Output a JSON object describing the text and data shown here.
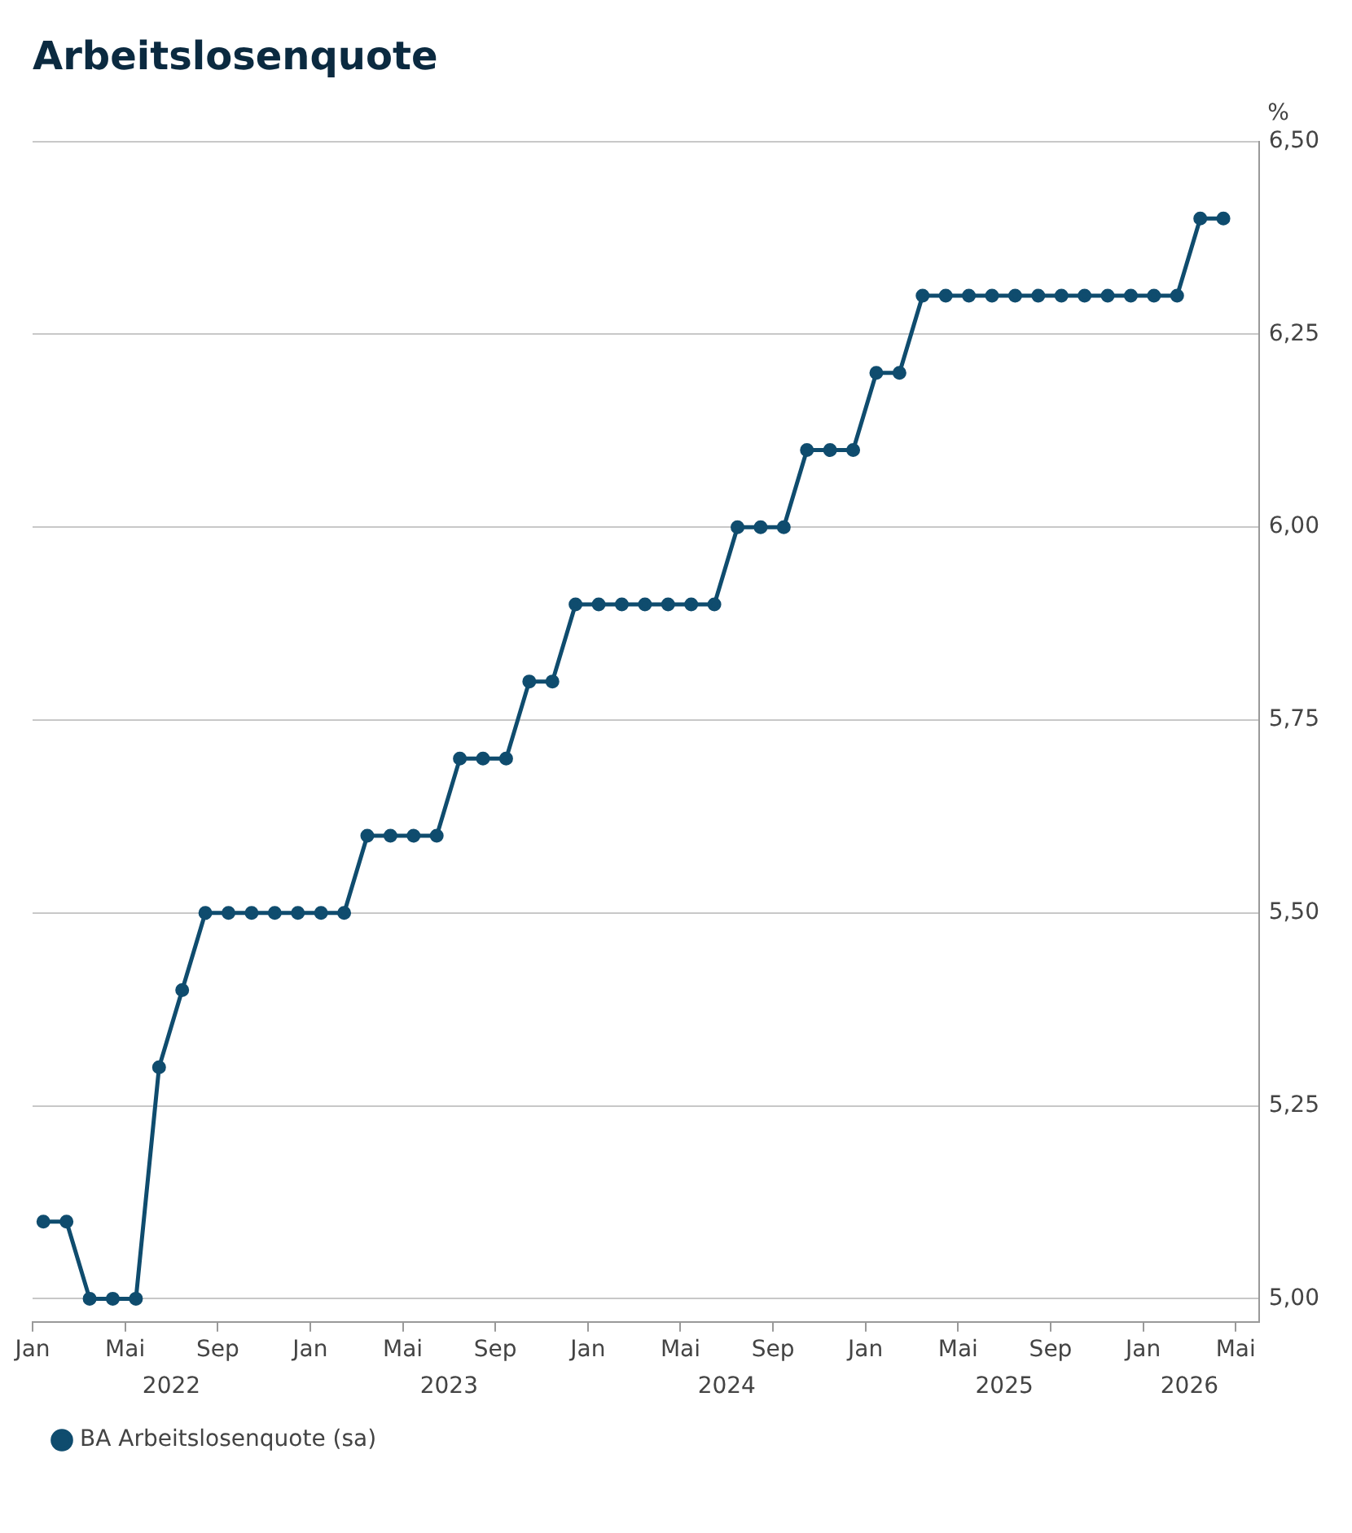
{
  "chart_data": {
    "type": "line",
    "title": "Arbeitslosenquote",
    "ylabel": "%",
    "x": [
      "2022-01-15",
      "2022-02-15",
      "2022-03-15",
      "2022-04-15",
      "2022-05-15",
      "2022-06-15",
      "2022-07-15",
      "2022-08-15",
      "2022-09-15",
      "2022-10-15",
      "2022-11-15",
      "2022-12-15",
      "2023-01-15",
      "2023-02-15",
      "2023-03-15",
      "2023-04-15",
      "2023-05-15",
      "2023-06-15",
      "2023-07-15",
      "2023-08-15",
      "2023-09-15",
      "2023-10-15",
      "2023-11-15",
      "2023-12-15",
      "2024-01-15",
      "2024-02-15",
      "2024-03-15",
      "2024-04-15",
      "2024-05-15",
      "2024-06-15",
      "2024-07-15",
      "2024-08-15",
      "2024-09-15",
      "2024-10-15",
      "2024-11-15",
      "2024-12-15",
      "2025-01-15",
      "2025-02-15",
      "2025-03-15",
      "2025-04-15",
      "2025-05-15",
      "2025-06-15",
      "2025-07-15",
      "2025-08-15",
      "2025-09-15",
      "2025-10-15",
      "2025-11-15",
      "2025-12-15",
      "2026-01-15",
      "2026-02-15",
      "2026-03-15",
      "2026-04-15"
    ],
    "series": [
      {
        "name": "BA Arbeitslosenquote (sa)",
        "color": "#0f4c6e",
        "values": [
          5.1,
          5.1,
          5.0,
          5.0,
          5.0,
          5.3,
          5.4,
          5.5,
          5.5,
          5.5,
          5.5,
          5.5,
          5.5,
          5.5,
          5.6,
          5.6,
          5.6,
          5.6,
          5.7,
          5.7,
          5.7,
          5.8,
          5.8,
          5.9,
          5.9,
          5.9,
          5.9,
          5.9,
          5.9,
          5.9,
          6.0,
          6.0,
          6.0,
          6.1,
          6.1,
          6.1,
          6.2,
          6.2,
          6.3,
          6.3,
          6.3,
          6.3,
          6.3,
          6.3,
          6.3,
          6.3,
          6.3,
          6.3,
          6.3,
          6.3,
          6.4,
          6.4
        ]
      }
    ],
    "xlim": [
      "2022-01",
      "2026-06"
    ],
    "xticks": [
      {
        "value": "2022-01",
        "label": "Jan"
      },
      {
        "value": "2022-05",
        "label": "Mai"
      },
      {
        "value": "2022-09",
        "label": "Sep"
      },
      {
        "value": "2023-01",
        "label": "Jan"
      },
      {
        "value": "2023-05",
        "label": "Mai"
      },
      {
        "value": "2023-09",
        "label": "Sep"
      },
      {
        "value": "2024-01",
        "label": "Jan"
      },
      {
        "value": "2024-05",
        "label": "Mai"
      },
      {
        "value": "2024-09",
        "label": "Sep"
      },
      {
        "value": "2025-01",
        "label": "Jan"
      },
      {
        "value": "2025-05",
        "label": "Mai"
      },
      {
        "value": "2025-09",
        "label": "Sep"
      },
      {
        "value": "2026-01",
        "label": "Jan"
      },
      {
        "value": "2026-05",
        "label": "Mai"
      }
    ],
    "x2lim": [
      "2022-01",
      "2026-06"
    ],
    "x2ticks": [
      {
        "value": "2022-07",
        "label": "2022"
      },
      {
        "value": "2023-07",
        "label": "2023"
      },
      {
        "value": "2024-07",
        "label": "2024"
      },
      {
        "value": "2025-07",
        "label": "2025"
      },
      {
        "value": "2026-03",
        "label": "2026"
      }
    ],
    "ylim": [
      4.97,
      6.5
    ],
    "yticks": [
      {
        "value": 5,
        "label": "5,00"
      },
      {
        "value": 5.25,
        "label": "5,25"
      },
      {
        "value": 5.5,
        "label": "5,50"
      },
      {
        "value": 5.75,
        "label": "5,75"
      },
      {
        "value": 6,
        "label": "6,00"
      },
      {
        "value": 6.25,
        "label": "6,25"
      },
      {
        "value": 6.5,
        "label": "6,50"
      }
    ],
    "grid": "y",
    "legend": "bottom left",
    "marker": "circle",
    "line_style": "solid"
  }
}
